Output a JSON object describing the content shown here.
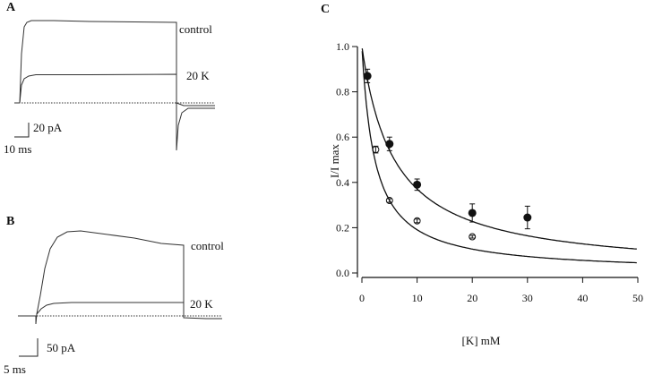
{
  "panels": {
    "a": {
      "label": "A",
      "traces": [
        "control",
        "20 K"
      ],
      "scale_y": "20 pA",
      "scale_x": "10 ms"
    },
    "b": {
      "label": "B",
      "traces": [
        "control",
        "20 K"
      ],
      "scale_y": "50 pA",
      "scale_x": "5 ms"
    },
    "c": {
      "label": "C"
    }
  },
  "chart_data": {
    "type": "scatter",
    "title": "",
    "xlabel": "[K] mM",
    "ylabel": "I/I max",
    "xlim": [
      0,
      50
    ],
    "ylim": [
      0,
      1.0
    ],
    "xticks": [
      "0",
      "10",
      "20",
      "30",
      "40",
      "50"
    ],
    "yticks": [
      "0.0",
      "0.2",
      "0.4",
      "0.6",
      "0.8",
      "1.0"
    ],
    "grid": false,
    "series": [
      {
        "name": "filled",
        "marker": "filled-circle",
        "x": [
          1,
          5,
          10,
          20,
          30
        ],
        "y": [
          0.87,
          0.57,
          0.39,
          0.265,
          0.245
        ],
        "err": [
          0.03,
          0.03,
          0.025,
          0.04,
          0.05
        ],
        "fit_kd": 5.9
      },
      {
        "name": "open",
        "marker": "open-circle",
        "x": [
          2.5,
          5,
          10,
          20
        ],
        "y": [
          0.545,
          0.32,
          0.23,
          0.16
        ],
        "err": [
          0.015,
          0.008,
          0.008,
          0.006
        ],
        "fit_kd": 2.36
      }
    ]
  }
}
